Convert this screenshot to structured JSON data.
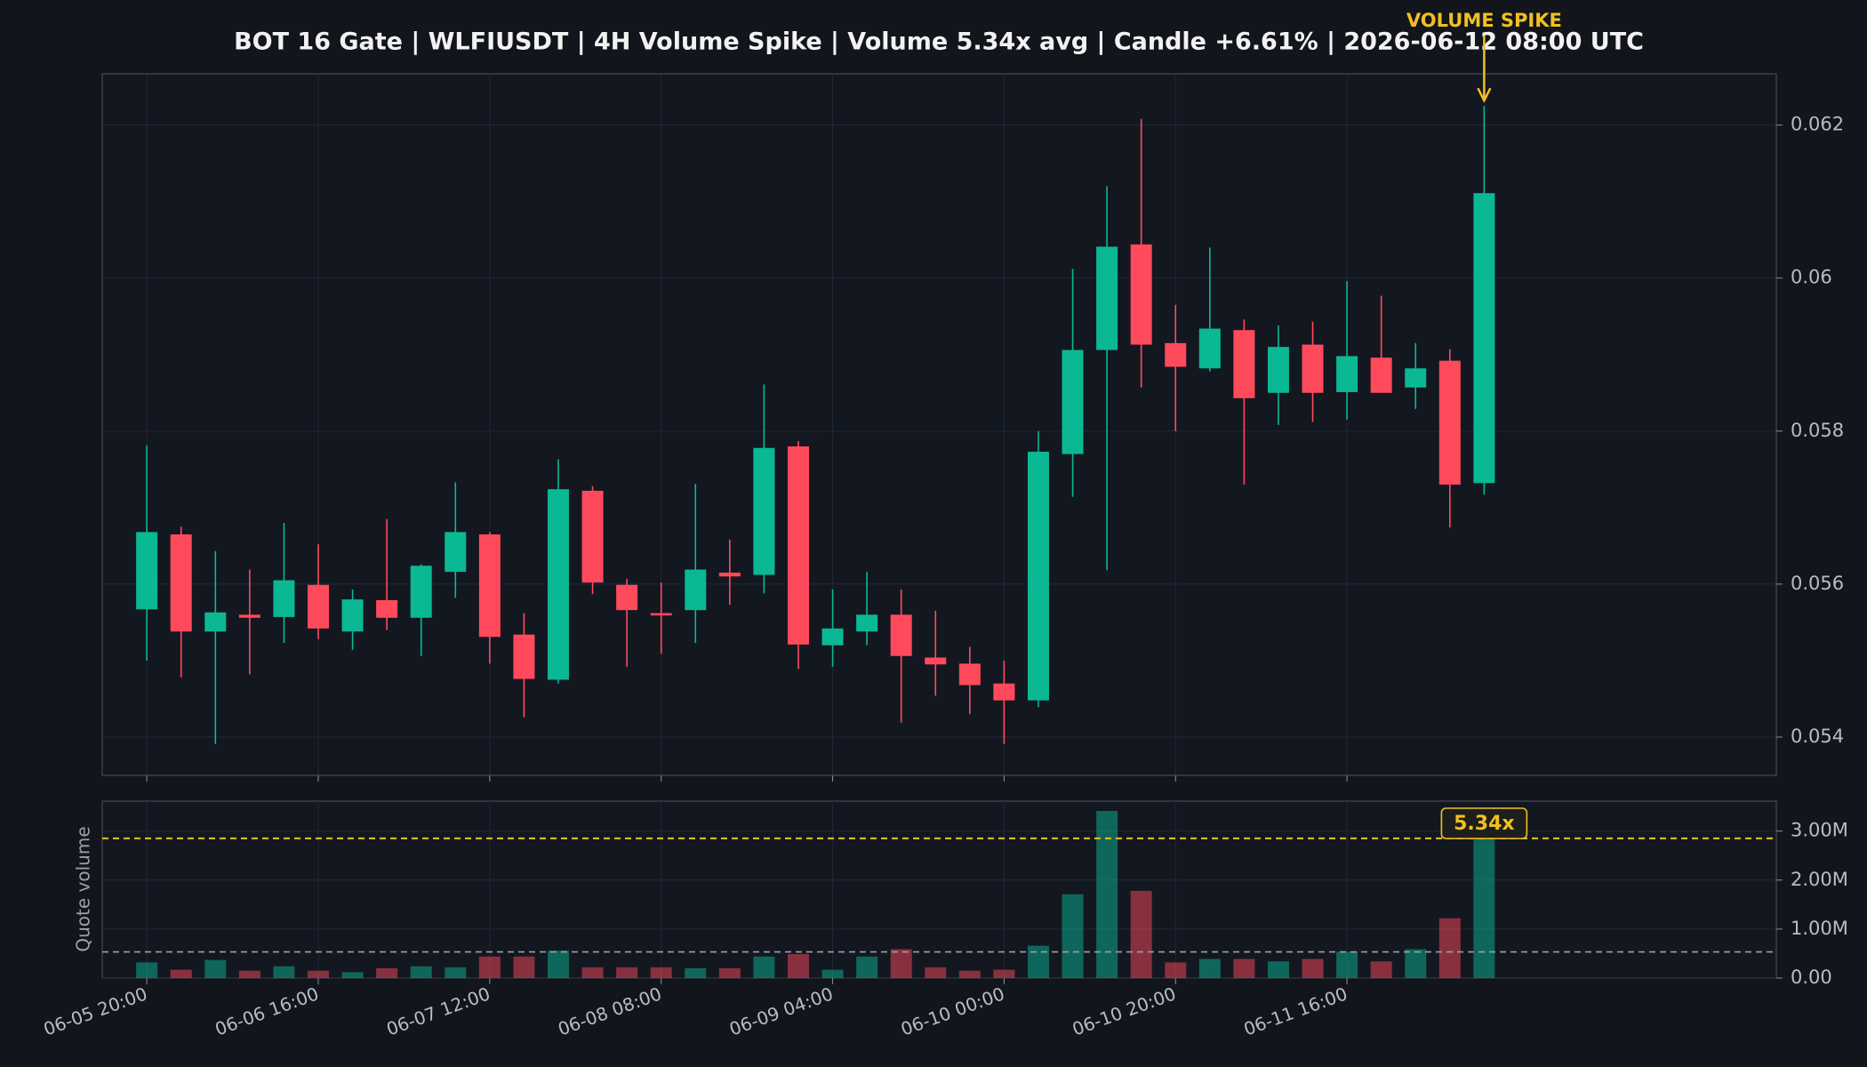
{
  "chart_data": [
    {
      "type": "candlestick",
      "title": "BOT 16 Gate | WLFIUSDT | 4H Volume Spike | Volume 5.34x avg | Candle +6.61% | 2026-06-12 08:00 UTC",
      "annotation": "VOLUME SPIKE",
      "categories": [
        "06-05 20:00",
        null,
        null,
        null,
        null,
        "06-06 16:00",
        null,
        null,
        null,
        null,
        "06-07 12:00",
        null,
        null,
        null,
        null,
        "06-08 08:00",
        null,
        null,
        null,
        null,
        "06-09 04:00",
        null,
        null,
        null,
        null,
        "06-10 00:00",
        null,
        null,
        null,
        null,
        "06-10 20:00",
        null,
        null,
        null,
        null,
        "06-11 16:00",
        null,
        null,
        null,
        null
      ],
      "open": [
        0.05567,
        0.05665,
        0.05538,
        0.0556,
        0.05557,
        0.05599,
        0.05538,
        0.05579,
        0.05556,
        0.05616,
        0.05665,
        0.05534,
        0.05475,
        0.05722,
        0.05599,
        0.05562,
        0.05566,
        0.05615,
        0.05612,
        0.0578,
        0.0552,
        0.05538,
        0.0556,
        0.05504,
        0.05496,
        0.0547,
        0.05448,
        0.0577,
        0.05906,
        0.06044,
        0.05915,
        0.05882,
        0.05932,
        0.0585,
        0.05913,
        0.05851,
        0.05896,
        0.05857,
        0.05892,
        0.05732
      ],
      "high": [
        0.05781,
        0.05675,
        0.05643,
        0.05619,
        0.0568,
        0.05652,
        0.05593,
        0.05685,
        0.05626,
        0.05733,
        0.05668,
        0.05562,
        0.05763,
        0.05728,
        0.05607,
        0.05602,
        0.05731,
        0.05658,
        0.05861,
        0.05787,
        0.05593,
        0.05616,
        0.05593,
        0.05565,
        0.05518,
        0.055,
        0.058,
        0.06012,
        0.0612,
        0.06208,
        0.05965,
        0.0604,
        0.05946,
        0.05938,
        0.05943,
        0.05996,
        0.05977,
        0.05915,
        0.05907,
        0.06225
      ],
      "low": [
        0.055,
        0.05478,
        0.05391,
        0.05482,
        0.05523,
        0.05528,
        0.05514,
        0.0554,
        0.05506,
        0.05582,
        0.05496,
        0.05426,
        0.0547,
        0.05587,
        0.05492,
        0.05509,
        0.05523,
        0.05573,
        0.05588,
        0.05489,
        0.05492,
        0.0552,
        0.05419,
        0.05454,
        0.0543,
        0.05391,
        0.05439,
        0.05714,
        0.05618,
        0.05857,
        0.058,
        0.05878,
        0.0573,
        0.05808,
        0.05812,
        0.05815,
        0.0585,
        0.05829,
        0.05674,
        0.05717
      ],
      "close": [
        0.05668,
        0.05538,
        0.05563,
        0.05556,
        0.05605,
        0.05542,
        0.0558,
        0.05556,
        0.05624,
        0.05668,
        0.05531,
        0.05476,
        0.05724,
        0.05602,
        0.05566,
        0.05559,
        0.05619,
        0.0561,
        0.05778,
        0.05521,
        0.05542,
        0.0556,
        0.05506,
        0.05495,
        0.05468,
        0.05448,
        0.05773,
        0.05906,
        0.06041,
        0.05913,
        0.05884,
        0.05934,
        0.05843,
        0.0591,
        0.0585,
        0.05898,
        0.0585,
        0.05882,
        0.0573,
        0.06111
      ],
      "up_color": "#0ab894",
      "down_color": "#ff4a5c",
      "ylim": [
        0.0535,
        0.06267
      ],
      "yticks": [
        0.054,
        0.056,
        0.058,
        0.06,
        0.062
      ],
      "grid": true
    },
    {
      "type": "bar",
      "ylabel": "Quote volume",
      "spike_label": "5.34x",
      "values": [
        320000,
        170000,
        370000,
        150000,
        240000,
        150000,
        120000,
        200000,
        240000,
        220000,
        440000,
        440000,
        560000,
        220000,
        220000,
        220000,
        200000,
        200000,
        440000,
        490000,
        170000,
        440000,
        590000,
        220000,
        150000,
        170000,
        660000,
        1710000,
        3410000,
        1780000,
        320000,
        390000,
        390000,
        340000,
        390000,
        540000,
        340000,
        590000,
        1220000,
        2850000
      ],
      "avg_volume": 534000,
      "spike_color": "#f0c020",
      "avg_color": "#9aa0aa",
      "ylim": [
        0,
        3610000
      ],
      "yticks": [
        {
          "value": 0,
          "label": "0.00"
        },
        {
          "value": 1000000,
          "label": "1.00M"
        },
        {
          "value": 2000000,
          "label": "2.00M"
        },
        {
          "value": 3000000,
          "label": "3.00M"
        }
      ],
      "grid": true
    }
  ]
}
